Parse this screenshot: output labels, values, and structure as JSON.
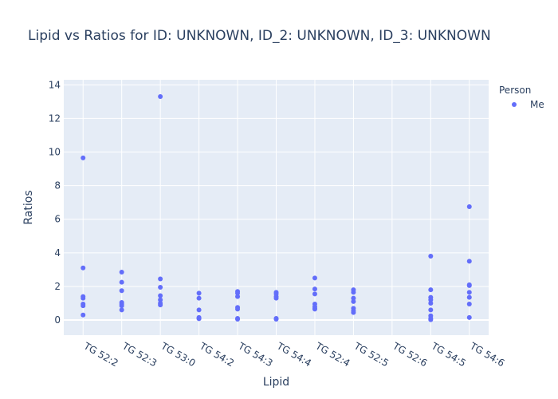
{
  "chart_data": {
    "type": "scatter",
    "title": "Lipid vs Ratios for ID: UNKNOWN, ID_2: UNKNOWN, ID_3: UNKNOWN",
    "xlabel": "Lipid",
    "ylabel": "Ratios",
    "categories": [
      "TG 52:2",
      "TG 52:3",
      "TG 53:0",
      "TG 54:2",
      "TG 54:3",
      "TG 54:4",
      "TG 52:4",
      "TG 52:5",
      "TG 52:6",
      "TG 54:5",
      "TG 54:6"
    ],
    "ylim": [
      -0.9,
      14.3
    ],
    "yticks": [
      0,
      2,
      4,
      6,
      8,
      10,
      12,
      14
    ],
    "grid": true,
    "legend": {
      "title": "Person",
      "placement": "top-right"
    },
    "colors": {
      "plot_bg": "#e5ecf6",
      "grid": "#ffffff",
      "text": "#2a3f5f"
    },
    "series": [
      {
        "name": "Me",
        "color": "#636efa",
        "points": [
          {
            "x": "TG 52:2",
            "y": 9.65
          },
          {
            "x": "TG 52:2",
            "y": 3.1
          },
          {
            "x": "TG 52:2",
            "y": 1.4
          },
          {
            "x": "TG 52:2",
            "y": 1.3
          },
          {
            "x": "TG 52:2",
            "y": 0.95
          },
          {
            "x": "TG 52:2",
            "y": 0.85
          },
          {
            "x": "TG 52:2",
            "y": 0.3
          },
          {
            "x": "TG 52:3",
            "y": 2.85
          },
          {
            "x": "TG 52:3",
            "y": 2.25
          },
          {
            "x": "TG 52:3",
            "y": 1.75
          },
          {
            "x": "TG 52:3",
            "y": 1.05
          },
          {
            "x": "TG 52:3",
            "y": 0.95
          },
          {
            "x": "TG 52:3",
            "y": 0.85
          },
          {
            "x": "TG 52:3",
            "y": 0.6
          },
          {
            "x": "TG 53:0",
            "y": 13.3
          },
          {
            "x": "TG 53:0",
            "y": 2.45
          },
          {
            "x": "TG 53:0",
            "y": 1.95
          },
          {
            "x": "TG 53:0",
            "y": 1.45
          },
          {
            "x": "TG 53:0",
            "y": 1.2
          },
          {
            "x": "TG 53:0",
            "y": 1.0
          },
          {
            "x": "TG 53:0",
            "y": 0.9
          },
          {
            "x": "TG 54:2",
            "y": 1.6
          },
          {
            "x": "TG 54:2",
            "y": 1.3
          },
          {
            "x": "TG 54:2",
            "y": 0.6
          },
          {
            "x": "TG 54:2",
            "y": 0.15
          },
          {
            "x": "TG 54:2",
            "y": 0.1
          },
          {
            "x": "TG 54:2",
            "y": 0.08
          },
          {
            "x": "TG 54:3",
            "y": 1.7
          },
          {
            "x": "TG 54:3",
            "y": 1.6
          },
          {
            "x": "TG 54:3",
            "y": 1.4
          },
          {
            "x": "TG 54:3",
            "y": 0.75
          },
          {
            "x": "TG 54:3",
            "y": 0.65
          },
          {
            "x": "TG 54:3",
            "y": 0.1
          },
          {
            "x": "TG 54:3",
            "y": 0.05
          },
          {
            "x": "TG 54:4",
            "y": 1.65
          },
          {
            "x": "TG 54:4",
            "y": 1.55
          },
          {
            "x": "TG 54:4",
            "y": 1.4
          },
          {
            "x": "TG 54:4",
            "y": 1.3
          },
          {
            "x": "TG 54:4",
            "y": 0.1
          },
          {
            "x": "TG 54:4",
            "y": 0.05
          },
          {
            "x": "TG 52:4",
            "y": 2.5
          },
          {
            "x": "TG 52:4",
            "y": 1.85
          },
          {
            "x": "TG 52:4",
            "y": 1.55
          },
          {
            "x": "TG 52:4",
            "y": 0.95
          },
          {
            "x": "TG 52:4",
            "y": 0.8
          },
          {
            "x": "TG 52:4",
            "y": 0.7
          },
          {
            "x": "TG 52:4",
            "y": 0.65
          },
          {
            "x": "TG 52:5",
            "y": 1.8
          },
          {
            "x": "TG 52:5",
            "y": 1.65
          },
          {
            "x": "TG 52:5",
            "y": 1.3
          },
          {
            "x": "TG 52:5",
            "y": 1.1
          },
          {
            "x": "TG 52:5",
            "y": 0.7
          },
          {
            "x": "TG 52:5",
            "y": 0.55
          },
          {
            "x": "TG 52:5",
            "y": 0.45
          },
          {
            "x": "TG 54:5",
            "y": 3.8
          },
          {
            "x": "TG 54:5",
            "y": 1.8
          },
          {
            "x": "TG 54:5",
            "y": 1.35
          },
          {
            "x": "TG 54:5",
            "y": 1.2
          },
          {
            "x": "TG 54:5",
            "y": 1.0
          },
          {
            "x": "TG 54:5",
            "y": 0.6
          },
          {
            "x": "TG 54:5",
            "y": 0.25
          },
          {
            "x": "TG 54:5",
            "y": 0.1
          },
          {
            "x": "TG 54:5",
            "y": 0.02
          },
          {
            "x": "TG 54:6",
            "y": 6.75
          },
          {
            "x": "TG 54:6",
            "y": 3.5
          },
          {
            "x": "TG 54:6",
            "y": 2.1
          },
          {
            "x": "TG 54:6",
            "y": 2.05
          },
          {
            "x": "TG 54:6",
            "y": 1.65
          },
          {
            "x": "TG 54:6",
            "y": 1.35
          },
          {
            "x": "TG 54:6",
            "y": 0.95
          },
          {
            "x": "TG 54:6",
            "y": 0.15
          }
        ]
      }
    ]
  }
}
